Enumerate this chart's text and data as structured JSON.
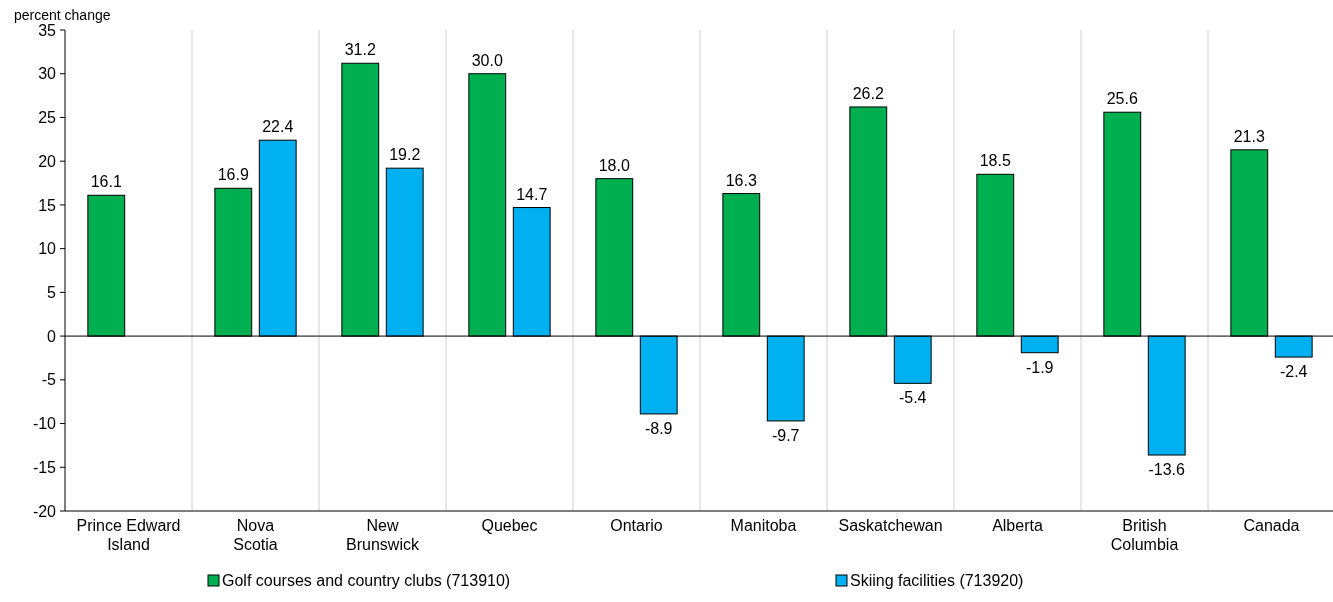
{
  "chart_data": {
    "type": "bar",
    "ylabel": "percent change",
    "categories": [
      "Prince Edward\nIsland",
      "Nova\nScotia",
      "New\nBrunswick",
      "Quebec",
      "Ontario",
      "Manitoba",
      "Saskatchewan",
      "Alberta",
      "British\nColumbia",
      "Canada"
    ],
    "series": [
      {
        "name": "Golf courses and country clubs (713910)",
        "color": "#00b050",
        "values": [
          16.1,
          16.9,
          31.2,
          30.0,
          18.0,
          16.3,
          26.2,
          18.5,
          25.6,
          21.3
        ]
      },
      {
        "name": "Skiing facilities (713920)",
        "color": "#00b0f0",
        "values": [
          null,
          22.4,
          19.2,
          14.7,
          -8.9,
          -9.7,
          -5.4,
          -1.9,
          -13.6,
          -2.4
        ]
      }
    ],
    "value_labels": [
      [
        "16.1",
        "16.9",
        "31.2",
        "30.0",
        "18.0",
        "16.3",
        "26.2",
        "18.5",
        "25.6",
        "21.3"
      ],
      [
        null,
        "22.4",
        "19.2",
        "14.7",
        "-8.9",
        "-9.7",
        "-5.4",
        "-1.9",
        "-13.6",
        "-2.4"
      ]
    ],
    "ylim": [
      -20,
      35
    ],
    "yticks": [
      -20,
      -15,
      -10,
      -5,
      0,
      5,
      10,
      15,
      20,
      25,
      30,
      35
    ],
    "grid": "x",
    "legend": "bottom"
  }
}
